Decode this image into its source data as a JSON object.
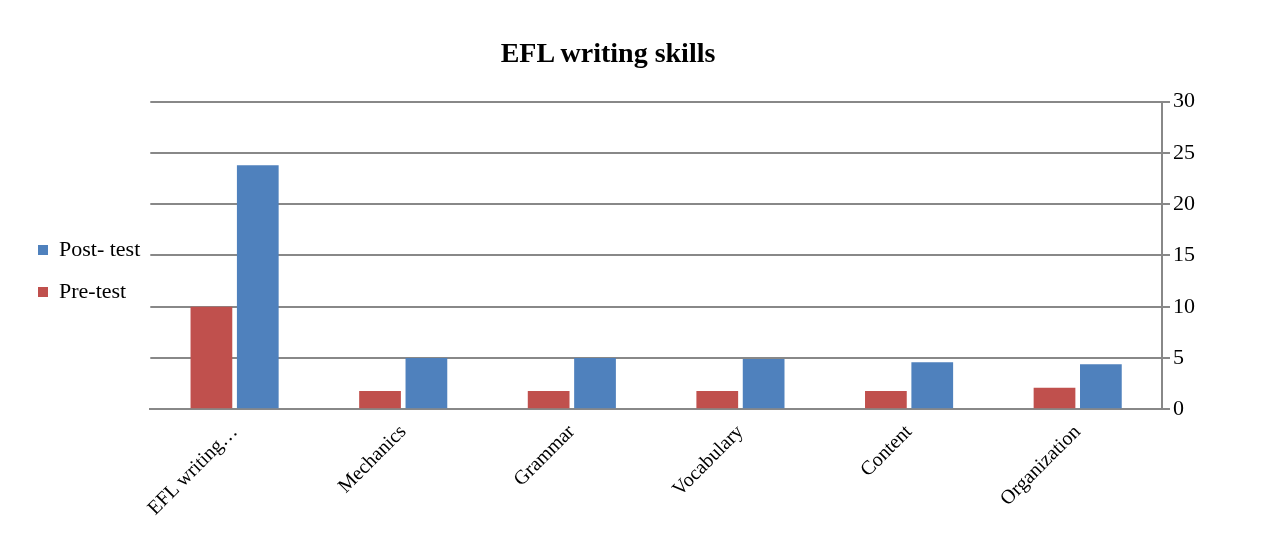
{
  "chart_data": {
    "type": "bar",
    "title": "EFL writing skills",
    "categories": [
      "EFL writing…",
      "Mechanics",
      "Grammar",
      "Vocabulary",
      "Content",
      "Organization"
    ],
    "series": [
      {
        "name": "Pre-test",
        "color": "#c0504d",
        "values": [
          10,
          1.8,
          1.8,
          1.8,
          1.8,
          2.1
        ]
      },
      {
        "name": "Post- test",
        "color": "#4f81bd",
        "values": [
          23.8,
          5,
          5,
          4.9,
          4.6,
          4.4
        ]
      }
    ],
    "ylim": [
      0,
      30
    ],
    "yticks": [
      0,
      5,
      10,
      15,
      20,
      25,
      30
    ],
    "grid": "y",
    "legend": "left"
  }
}
